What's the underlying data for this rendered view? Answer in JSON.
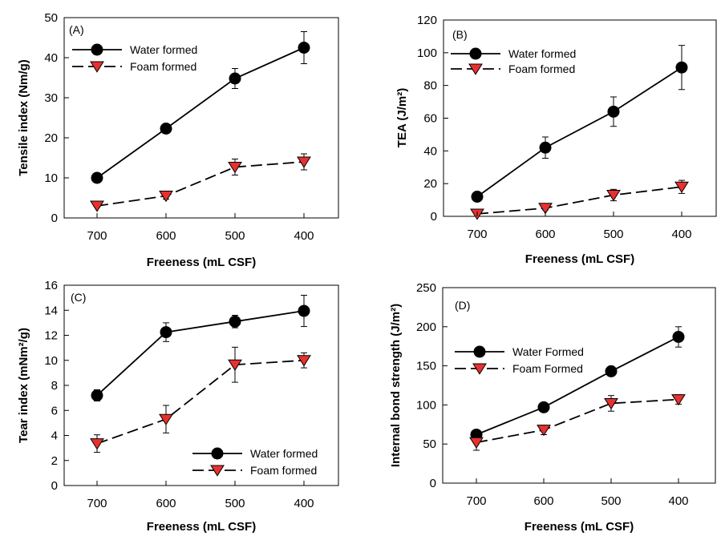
{
  "chart_data": [
    {
      "type": "line",
      "panel": "(A)",
      "categories": [
        "700",
        "600",
        "500",
        "400"
      ],
      "xlabel": "Freeness (mL CSF)",
      "ylabel": "Tensile index (Nm/g)",
      "ylim": [
        0,
        50
      ],
      "yticks": [
        "0",
        "10",
        "20",
        "30",
        "40",
        "50"
      ],
      "legend_position": "top-left",
      "series": [
        {
          "name": "Water formed",
          "values": [
            10,
            22.3,
            34.8,
            42.5
          ],
          "errors": [
            0.4,
            1.2,
            2.5,
            4.0
          ],
          "marker": "circle",
          "dashed": false
        },
        {
          "name": "Foam formed",
          "values": [
            3.0,
            5.5,
            12.7,
            14.0
          ],
          "errors": [
            0.3,
            0.8,
            2.0,
            2.0
          ],
          "marker": "triangle-down",
          "dashed": true
        }
      ]
    },
    {
      "type": "line",
      "panel": "(B)",
      "categories": [
        "700",
        "600",
        "500",
        "400"
      ],
      "xlabel": "Freeness (mL CSF)",
      "ylabel": "TEA (J/m²)",
      "ylim": [
        0,
        120
      ],
      "yticks": [
        "0",
        "20",
        "40",
        "60",
        "80",
        "100",
        "120"
      ],
      "legend_position": "top-left",
      "series": [
        {
          "name": "Water formed",
          "values": [
            12,
            42,
            64,
            91
          ],
          "errors": [
            1,
            6.5,
            9,
            13.5
          ],
          "marker": "circle",
          "dashed": false
        },
        {
          "name": "Foam formed",
          "values": [
            1.5,
            5,
            13,
            18
          ],
          "errors": [
            0.5,
            1,
            3.5,
            4
          ],
          "marker": "triangle-down",
          "dashed": true
        }
      ]
    },
    {
      "type": "line",
      "panel": "(C)",
      "categories": [
        "700",
        "600",
        "500",
        "400"
      ],
      "xlabel": "Freeness (mL CSF)",
      "ylabel": "Tear index (mNm²/g)",
      "ylim": [
        0,
        16
      ],
      "yticks": [
        "0",
        "2",
        "4",
        "6",
        "8",
        "10",
        "12",
        "14",
        "16"
      ],
      "legend_position": "bottom-right",
      "series": [
        {
          "name": "Water formed",
          "values": [
            7.2,
            12.25,
            13.1,
            13.95
          ],
          "errors": [
            0.45,
            0.75,
            0.5,
            1.25
          ],
          "marker": "circle",
          "dashed": false
        },
        {
          "name": "Foam formed",
          "values": [
            3.35,
            5.3,
            9.65,
            10.0
          ],
          "errors": [
            0.7,
            1.1,
            1.4,
            0.6
          ],
          "marker": "triangle-down",
          "dashed": true
        }
      ]
    },
    {
      "type": "line",
      "panel": "(D)",
      "categories": [
        "700",
        "600",
        "500",
        "400"
      ],
      "xlabel": "Freeness (mL CSF)",
      "ylabel": "Internal bond strength (J/m²)",
      "ylim": [
        0,
        250
      ],
      "yticks": [
        "0",
        "50",
        "100",
        "150",
        "200",
        "250"
      ],
      "legend_position": "top-left",
      "series": [
        {
          "name": "Water Formed",
          "values": [
            62,
            97,
            143,
            187
          ],
          "errors": [
            3,
            3,
            3,
            13
          ],
          "marker": "circle",
          "dashed": false
        },
        {
          "name": "Foam Formed",
          "values": [
            52,
            68,
            102,
            107
          ],
          "errors": [
            10,
            6,
            10,
            6
          ],
          "marker": "triangle-down",
          "dashed": true
        }
      ]
    }
  ],
  "colors": {
    "water_marker": "#000000",
    "foam_marker": "#e8312f",
    "line": "#000000"
  }
}
